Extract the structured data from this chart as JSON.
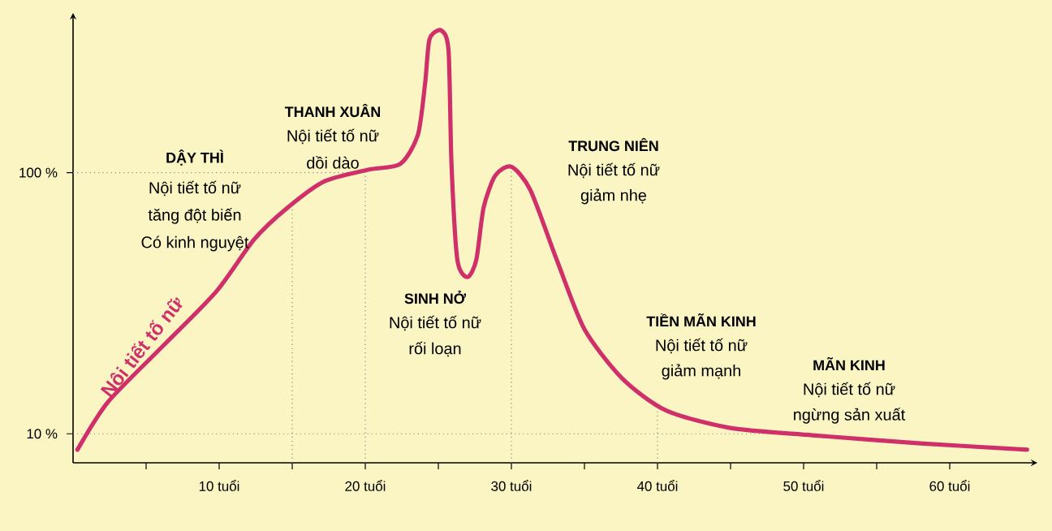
{
  "chart_data": {
    "type": "line",
    "xlim": [
      0,
      66
    ],
    "ylim": [
      0,
      155
    ],
    "xticks": [
      {
        "value": 5,
        "label": null
      },
      {
        "value": 10,
        "label": "10 tuổi"
      },
      {
        "value": 15,
        "label": null
      },
      {
        "value": 20,
        "label": "20 tuổi"
      },
      {
        "value": 25,
        "label": null
      },
      {
        "value": 30,
        "label": "30 tuổi"
      },
      {
        "value": 35,
        "label": null
      },
      {
        "value": 40,
        "label": "40 tuổi"
      },
      {
        "value": 45,
        "label": null
      },
      {
        "value": 50,
        "label": "50 tuổi"
      },
      {
        "value": 55,
        "label": null
      },
      {
        "value": 60,
        "label": "60 tuổi"
      }
    ],
    "yticks": [
      {
        "value": 10,
        "label": "10 %"
      },
      {
        "value": 100,
        "label": "100 %"
      }
    ],
    "grid": false,
    "legend": false,
    "line_style": "solid",
    "series": [
      {
        "name": "Nội tiết tố nữ",
        "color": "#d0306a",
        "x": [
          0.3,
          2.4,
          6.1,
          9.8,
          12.4,
          14.7,
          17.2,
          20.2,
          22.4,
          23.6,
          24.1,
          24.4,
          25.2,
          25.7,
          25.9,
          26.3,
          27,
          27.6,
          28.1,
          28.9,
          30,
          31.3,
          33.1,
          35,
          37.6,
          40.6,
          45,
          50.6,
          58,
          65.3
        ],
        "values": [
          4.5,
          21,
          40,
          59,
          77,
          88,
          97,
          101,
          103,
          113,
          131,
          146,
          149,
          142,
          103,
          70,
          64,
          70,
          88,
          99,
          102,
          94,
          70,
          46,
          29,
          18,
          12,
          9.5,
          6.7,
          4.5
        ]
      }
    ],
    "ref_lines": [
      {
        "axis": "y",
        "value": 100,
        "color": "#888888",
        "line_style": "dotted"
      },
      {
        "axis": "y",
        "value": 10,
        "color": "#888888",
        "line_style": "dotted"
      },
      {
        "axis": "x",
        "value": 15,
        "color": "#888888",
        "line_style": "dotted"
      },
      {
        "axis": "x",
        "value": 20,
        "color": "#888888",
        "line_style": "dotted"
      },
      {
        "axis": "x",
        "value": 30,
        "color": "#888888",
        "line_style": "dotted"
      },
      {
        "axis": "x",
        "value": 40,
        "color": "#888888",
        "line_style": "dotted"
      }
    ],
    "annotations": [
      "DẬY THÌ",
      "Nội tiết tố nữ",
      "tăng đột biến",
      "Có kinh nguyệt",
      "THANH XUÂN",
      "Nội tiết tố nữ",
      "dồi dào",
      "SINH NỞ",
      "Nội tiết tố nữ",
      "rối loạn",
      "TRUNG NIÊN",
      "Nội tiết tố nữ",
      "giảm nhẹ",
      "TIỀN MÃN KINH",
      "Nội tiết tố nữ",
      "giảm mạnh",
      "MÃN KINH",
      "Nội tiết tố nữ",
      "ngừng sản xuất"
    ]
  }
}
